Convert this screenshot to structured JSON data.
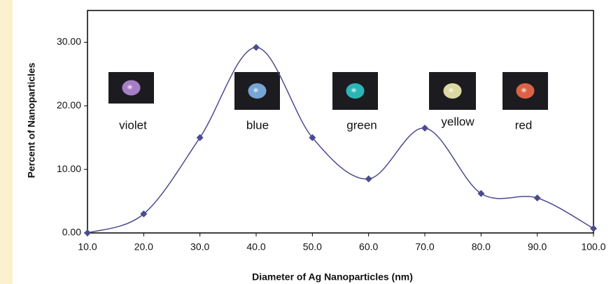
{
  "chart_data": {
    "type": "line",
    "x_label": "Diameter of Ag Nanoparticles (nm)",
    "y_label": "Percent of Nanoparticles",
    "x": [
      10,
      20,
      30,
      40,
      50,
      60,
      70,
      80,
      90,
      100
    ],
    "values": [
      0,
      3,
      15,
      29.2,
      15,
      8.5,
      16.5,
      6.2,
      5.5,
      0.7
    ],
    "color": "#4b4b8f",
    "smooth": true,
    "xlim": [
      10,
      100
    ],
    "xticks": [
      {
        "value": 10,
        "label": "10.0"
      },
      {
        "value": 20,
        "label": "20.0"
      },
      {
        "value": 30,
        "label": "30.0"
      },
      {
        "value": 40,
        "label": "40.0"
      },
      {
        "value": 50,
        "label": "50.0"
      },
      {
        "value": 60,
        "label": "60.0"
      },
      {
        "value": 70,
        "label": "70.0"
      },
      {
        "value": 80,
        "label": "80.0"
      },
      {
        "value": 90,
        "label": "90.0"
      },
      {
        "value": 100,
        "label": "100.0"
      }
    ],
    "ylim": [
      0,
      35
    ],
    "yticks": [
      {
        "value": 0,
        "label": "0.00"
      },
      {
        "value": 10,
        "label": "10.00"
      },
      {
        "value": 20,
        "label": "20.00"
      },
      {
        "value": 30,
        "label": "30.00"
      }
    ],
    "annotations": [
      {
        "text": "violet",
        "color": "#b68ad8"
      },
      {
        "text": "blue",
        "color": "#7fb6ea"
      },
      {
        "text": "green",
        "color": "#2fc6c6"
      },
      {
        "text": "yellow",
        "color": "#f2f0b0"
      },
      {
        "text": "red",
        "color": "#f26a4a"
      }
    ]
  }
}
